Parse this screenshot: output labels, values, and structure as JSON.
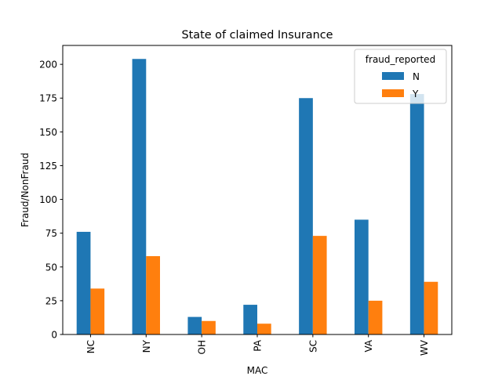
{
  "chart_data": {
    "type": "bar",
    "title": "State of claimed Insurance",
    "xlabel": "MAC",
    "ylabel": "Fraud/NonFraud",
    "categories": [
      "NC",
      "NY",
      "OH",
      "PA",
      "SC",
      "VA",
      "WV"
    ],
    "series": [
      {
        "name": "N",
        "values": [
          76,
          204,
          13,
          22,
          175,
          85,
          178
        ]
      },
      {
        "name": "Y",
        "values": [
          34,
          58,
          10,
          8,
          73,
          25,
          39
        ]
      }
    ],
    "ylim": [
      0,
      214
    ],
    "yticks": [
      0,
      25,
      50,
      75,
      100,
      125,
      150,
      175,
      200
    ],
    "legend": {
      "title": "fraud_reported",
      "placement": "top-right"
    },
    "grid": false
  },
  "colors": {
    "N": "#1f77b4",
    "Y": "#ff7f0e"
  }
}
